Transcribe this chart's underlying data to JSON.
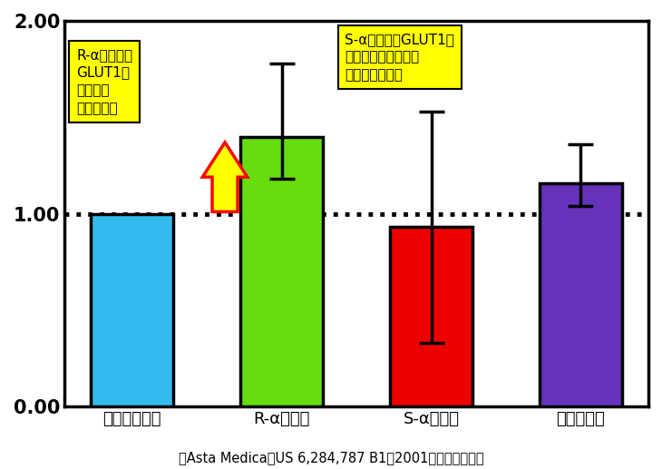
{
  "categories": [
    "コントロール",
    "R-αリポ酸",
    "S-αリポ酸",
    "インスリン"
  ],
  "values": [
    1.0,
    1.4,
    0.93,
    1.16
  ],
  "errors_up": [
    0.0,
    0.38,
    0.6,
    0.2
  ],
  "errors_down": [
    0.0,
    0.22,
    0.6,
    0.12
  ],
  "bar_colors": [
    "#33BBEE",
    "#66DD11",
    "#EE0000",
    "#6633BB"
  ],
  "bar_edgecolor": "#000000",
  "ylim": [
    0.0,
    2.0
  ],
  "ytick_labels": [
    "0.00",
    "1.00",
    "2.00"
  ],
  "ytick_values": [
    0.0,
    1.0,
    2.0
  ],
  "dashed_line_y": 1.0,
  "annotation1_text": "R-αリポ酸は\nGLUT1の\n膜移動を\nサポート！",
  "annotation2_text": "S-αリポ酸はGLUT1の\n膜移動をわずかだが\n阻害する傾向！",
  "caption": "（Asta Medica　US 6,284,787 B1（2001）からの改編）",
  "bar_width": 0.55,
  "background_color": "#ffffff",
  "arrow_fill": "#FFFF00",
  "arrow_edge": "#FF0000",
  "annotation_bg": "#FFFF00"
}
